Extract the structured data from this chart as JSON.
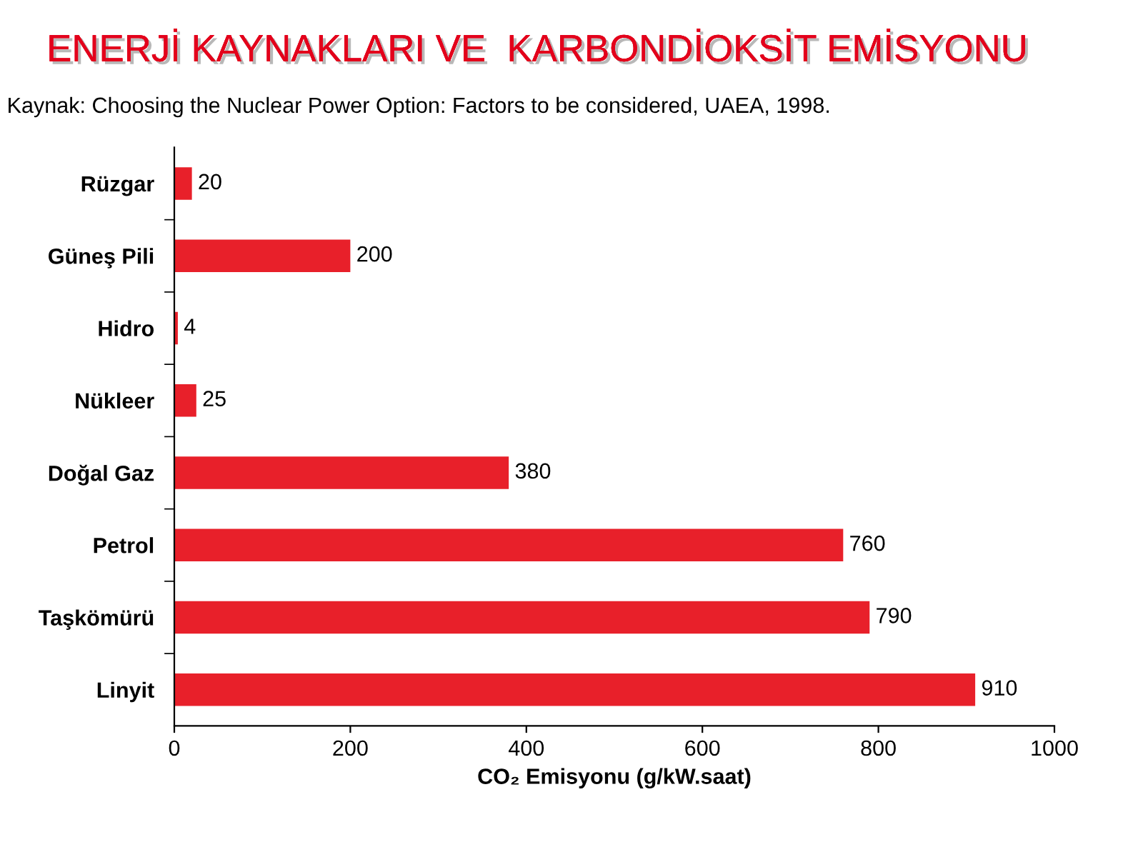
{
  "chart_data": {
    "type": "bar",
    "orientation": "horizontal",
    "title": "ENERJİ KAYNAKLARI VE  KARBONDİOKSİT EMİSYONU",
    "annotations": [
      "Kaynak: Choosing the Nuclear Power Option: Factors to be considered, UAEA, 1998."
    ],
    "categories": [
      "Rüzgar",
      "Güneş Pili",
      "Hidro",
      "Nükleer",
      "Doğal Gaz",
      "Petrol",
      "Taşkömürü",
      "Linyit"
    ],
    "values": [
      20,
      200,
      4,
      25,
      380,
      760,
      790,
      910
    ],
    "color": "#e8202a",
    "xlabel": "CO₂ Emisyonu (g/kW.saat)",
    "xlim": [
      0,
      1000
    ],
    "xticks": [
      0,
      200,
      400,
      600,
      800,
      1000
    ],
    "data_labels": true,
    "grid": false,
    "legend": false
  }
}
